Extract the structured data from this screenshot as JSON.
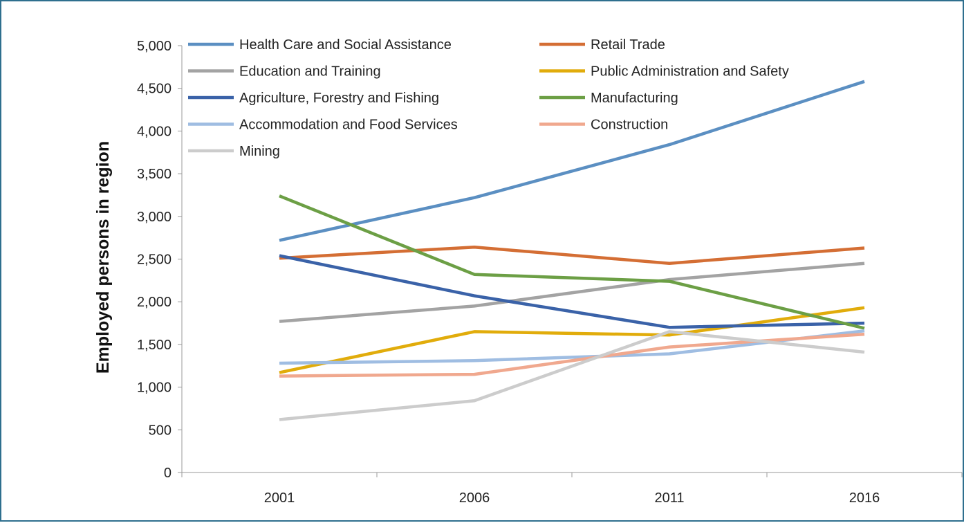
{
  "chart_data": {
    "type": "line",
    "title": "",
    "xlabel": "",
    "ylabel": "Employed persons in region",
    "categories": [
      "2001",
      "2006",
      "2011",
      "2016"
    ],
    "ylim": [
      0,
      5000
    ],
    "yticks": [
      0,
      500,
      1000,
      1500,
      2000,
      2500,
      3000,
      3500,
      4000,
      4500,
      5000
    ],
    "ytick_labels": [
      "0",
      "500",
      "1,000",
      "1,500",
      "2,000",
      "2,500",
      "3,000",
      "3,500",
      "4,000",
      "4,500",
      "5,000"
    ],
    "grid": false,
    "legend_position": "top",
    "series": [
      {
        "name": "Health Care and Social Assistance",
        "color": "#5b8fc2",
        "values": [
          2720,
          3220,
          3840,
          4580
        ]
      },
      {
        "name": "Retail Trade",
        "color": "#d46e34",
        "values": [
          2510,
          2640,
          2450,
          2630
        ]
      },
      {
        "name": "Education and Training",
        "color": "#a3a3a3",
        "values": [
          1770,
          1950,
          2260,
          2450
        ]
      },
      {
        "name": "Public Administration and Safety",
        "color": "#e1ac0b",
        "values": [
          1170,
          1650,
          1610,
          1930
        ]
      },
      {
        "name": "Agriculture, Forestry and Fishing",
        "color": "#3a62a8",
        "values": [
          2540,
          2070,
          1700,
          1750
        ]
      },
      {
        "name": "Manufacturing",
        "color": "#6c9f45",
        "values": [
          3240,
          2320,
          2240,
          1690
        ]
      },
      {
        "name": "Accommodation and Food Services",
        "color": "#9fbde2",
        "values": [
          1280,
          1310,
          1390,
          1660
        ]
      },
      {
        "name": "Construction",
        "color": "#f0a88e",
        "values": [
          1130,
          1150,
          1470,
          1620
        ]
      },
      {
        "name": "Mining",
        "color": "#cccccc",
        "values": [
          620,
          840,
          1650,
          1410
        ]
      }
    ]
  }
}
